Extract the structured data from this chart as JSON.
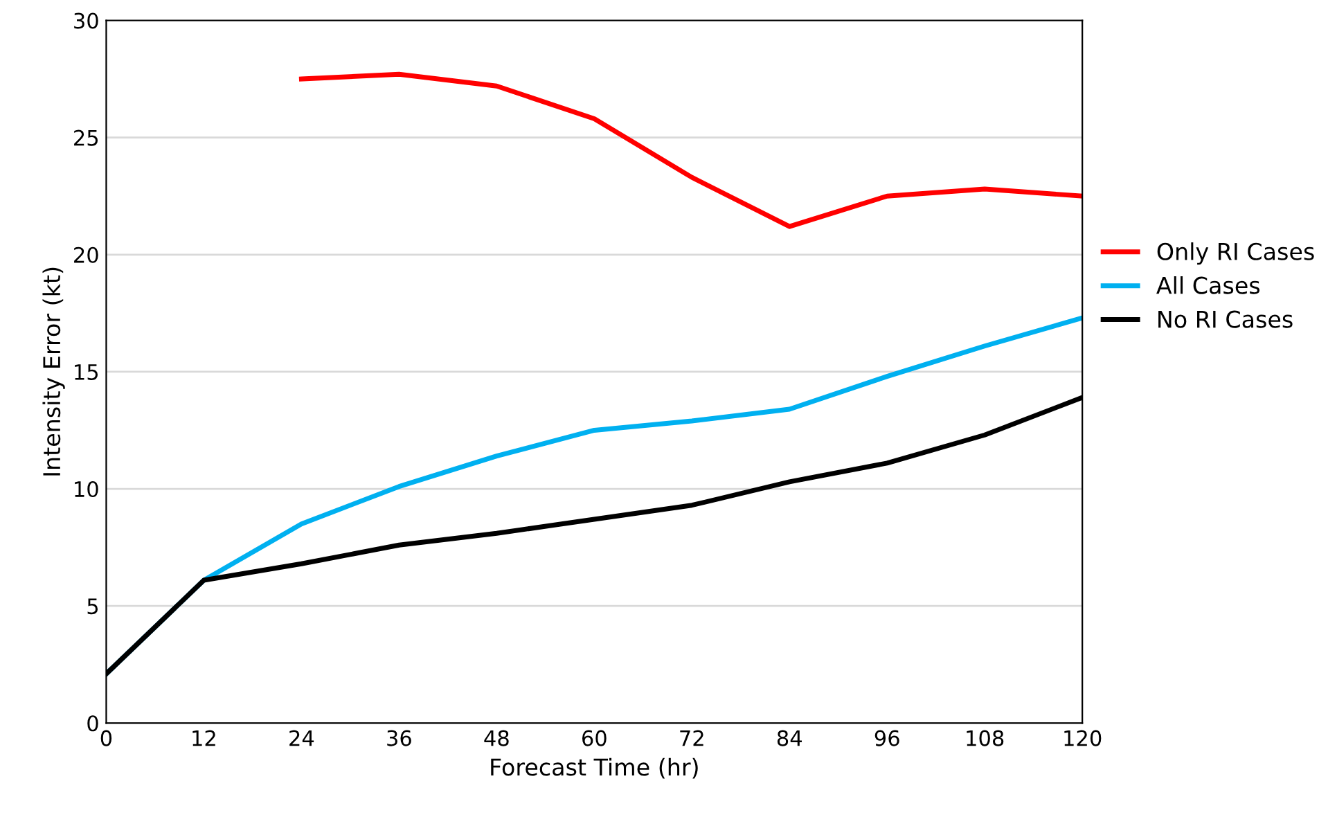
{
  "chart_data": {
    "type": "line",
    "xlabel": "Forecast Time (hr)",
    "ylabel": "Intensity Error (kt)",
    "x": [
      0,
      12,
      24,
      36,
      48,
      60,
      72,
      84,
      96,
      108,
      120
    ],
    "series": [
      {
        "name": "Only RI Cases",
        "color": "#ff0000",
        "values": [
          null,
          null,
          27.5,
          27.7,
          27.2,
          25.8,
          23.3,
          21.2,
          22.5,
          22.8,
          22.5
        ]
      },
      {
        "name": "All Cases",
        "color": "#00b0f0",
        "values": [
          2.1,
          6.1,
          8.5,
          10.1,
          11.4,
          12.5,
          12.9,
          13.4,
          14.8,
          16.1,
          17.3
        ]
      },
      {
        "name": "No RI Cases",
        "color": "#000000",
        "values": [
          2.1,
          6.1,
          6.8,
          7.6,
          8.1,
          8.7,
          9.3,
          10.3,
          11.1,
          12.3,
          13.9
        ]
      }
    ],
    "xlim": [
      0,
      120
    ],
    "xticks": [
      0,
      12,
      24,
      36,
      48,
      60,
      72,
      84,
      96,
      108,
      120
    ],
    "ylim": [
      0,
      30
    ],
    "yticks": [
      0,
      5,
      10,
      15,
      20,
      25,
      30
    ],
    "grid": "y",
    "legend": "right",
    "marker": "none",
    "line_style": "solid"
  }
}
